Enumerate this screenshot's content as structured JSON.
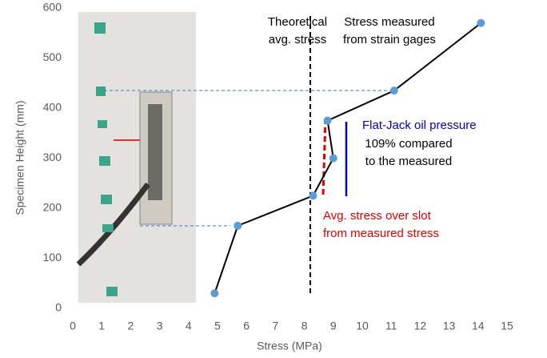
{
  "chart_data": {
    "type": "line",
    "x_label": "Stress (MPa)",
    "y_label": "Specimen Height (mm)",
    "series": [
      {
        "color": "#000000",
        "marker_color": "#5b9bd5",
        "x": [
          4.9,
          5.7,
          8.3,
          9.0,
          8.8,
          11.1,
          14.1
        ],
        "values": [
          30,
          165,
          225,
          300,
          375,
          435,
          570
        ]
      }
    ],
    "xlim": [
      0,
      15
    ],
    "xticks": [
      0,
      1,
      2,
      3,
      4,
      5,
      6,
      7,
      8,
      9,
      10,
      11,
      12,
      13,
      14,
      15
    ],
    "ylim": [
      0,
      600
    ],
    "yticks": [
      0,
      100,
      200,
      300,
      400,
      500,
      600
    ],
    "annotations": [
      {
        "lines": [
          "Theoretical",
          "avg. stress"
        ],
        "color": "#000000"
      },
      {
        "lines": [
          "Stress measured",
          "from strain gages"
        ],
        "color": "#000000"
      },
      {
        "lines": [
          "Flat-Jack oil pressure"
        ],
        "color": "#0000c0"
      },
      {
        "lines": [
          "109% compared",
          " to the measured"
        ],
        "color": "#000000"
      },
      {
        "lines": [
          "Avg. stress over slot",
          "from measured stress"
        ],
        "color": "#e00000"
      }
    ]
  }
}
